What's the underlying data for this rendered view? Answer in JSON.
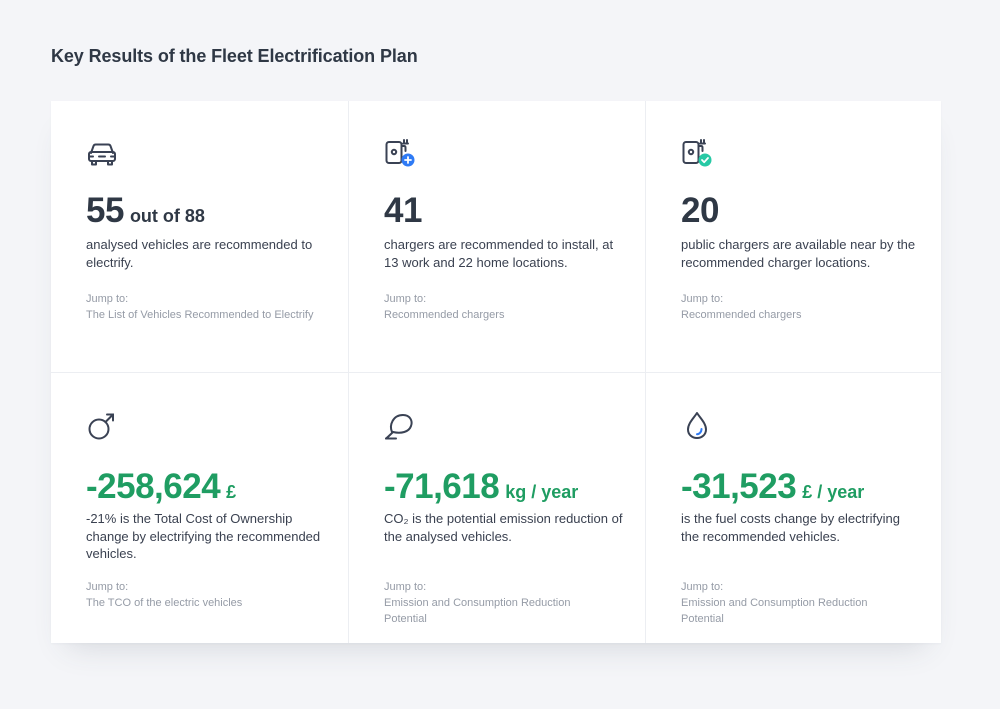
{
  "page": {
    "title": "Key Results of the Fleet Electrification Plan"
  },
  "colors": {
    "accent_green": "#1f9d62",
    "accent_blue": "#2f7bf5",
    "accent_teal": "#27c9a5",
    "text_dark": "#2f3845",
    "text_muted": "#959ba6"
  },
  "cards": [
    {
      "icon": "car-icon",
      "value": "55",
      "unit": "out of 88",
      "description": "analysed vehicles are recommended to electrify.",
      "jump_label": "Jump to:",
      "jump_link": "The List of Vehicles Recommended to Electrify"
    },
    {
      "icon": "charger-add-icon",
      "value": "41",
      "unit": "",
      "description": "chargers are recommended to install, at 13 work and 22 home locations.",
      "jump_label": "Jump to:",
      "jump_link": "Recommended chargers"
    },
    {
      "icon": "charger-check-icon",
      "value": "20",
      "unit": "",
      "description": "public chargers are available near by the recommended charger locations.",
      "jump_label": "Jump to:",
      "jump_link": "Recommended chargers"
    },
    {
      "icon": "coin-icon",
      "value": "-258,624",
      "unit": "£",
      "description": "-21% is the Total Cost of Ownership change by electrifying the recommended vehicles.",
      "jump_label": "Jump to:",
      "jump_link": "The TCO of the electric vehicles"
    },
    {
      "icon": "leaf-icon",
      "value": "-71,618",
      "unit": "kg / year",
      "description": "CO₂ is the potential emission reduction of the analysed vehicles.",
      "jump_label": "Jump to:",
      "jump_link": "Emission and Consumption Reduction Potential"
    },
    {
      "icon": "fuel-drop-icon",
      "value": "-31,523",
      "unit": "£ / year",
      "description": "is the fuel costs change by electrifying the recommended vehicles.",
      "jump_label": "Jump to:",
      "jump_link": "Emission and Consumption Reduction Potential"
    }
  ]
}
